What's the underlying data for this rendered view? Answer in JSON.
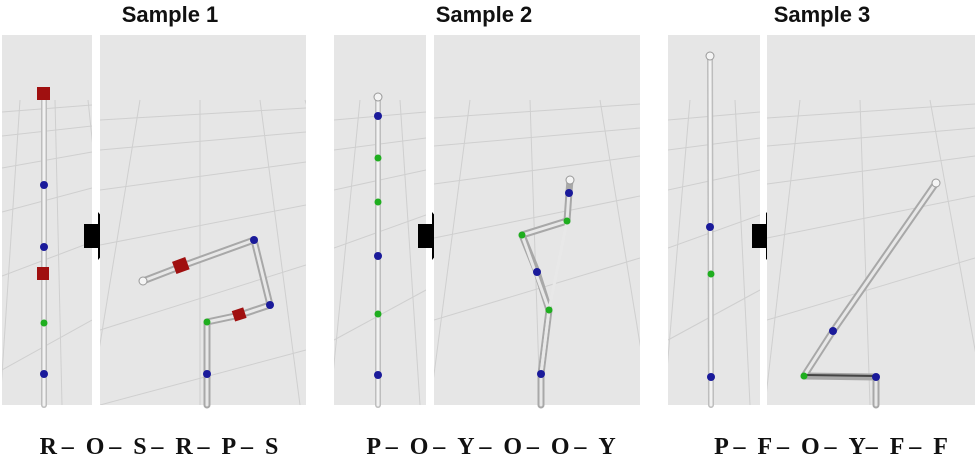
{
  "samples": [
    {
      "title": "Sample 1",
      "sequence": "R –  O –  S –  R –  P –  S"
    },
    {
      "title": "Sample 2",
      "sequence": "P –  O –  Y –  O –  O –  Y"
    },
    {
      "title": "Sample 3",
      "sequence": "P –  F –  O –  Y–  F –  F"
    }
  ],
  "colors": {
    "background": "#e6e6e6",
    "grid": "#cfcfcf",
    "link": "#d8d8d8",
    "link_dark": "#9a9a9a",
    "joint_R": "#a01010",
    "joint_Y": "#1a1a9a",
    "joint_P": "#1fae1f",
    "arrow": "#000000"
  }
}
